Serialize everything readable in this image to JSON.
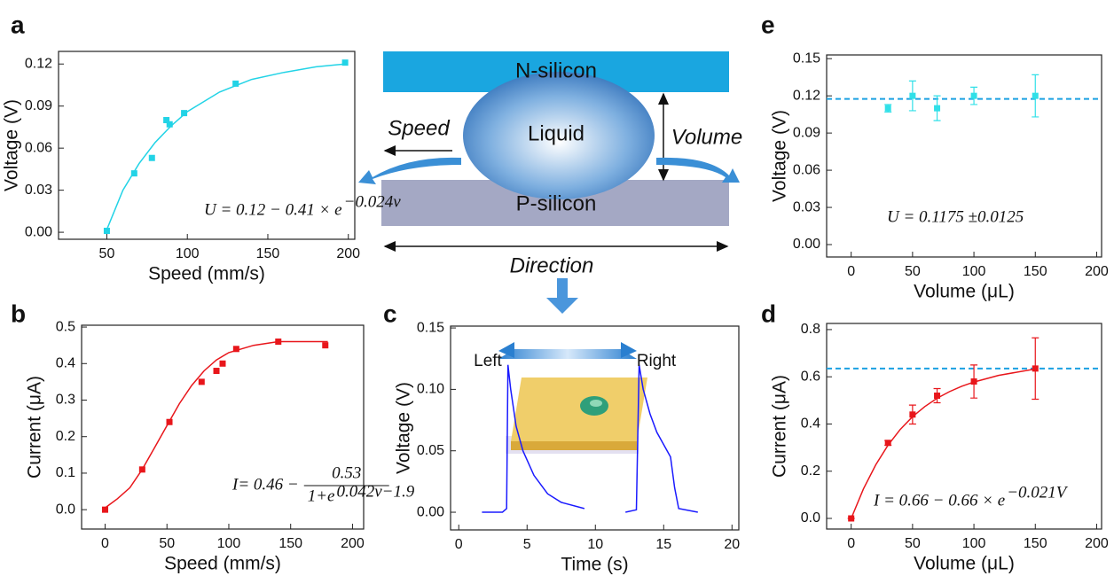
{
  "chart_data": [
    {
      "type": "scatter",
      "panel_label": "a",
      "xlabel": "Speed (mm/s)",
      "ylabel": "Voltage (V)",
      "xlim": [
        20,
        204
      ],
      "ylim": [
        -0.005,
        0.129
      ],
      "xticks": [
        50,
        100,
        150,
        200
      ],
      "yticks": [
        {
          "value": 0,
          "label": "0.00"
        },
        0.03,
        0.06,
        0.09,
        0.12
      ],
      "formula": {
        "lhs": "U = 0.12 − 0.41 × e",
        "exp": "−0.024v"
      },
      "series": [
        {
          "type": "scatter",
          "color": "#22d3e6",
          "x": [
            50,
            67,
            78,
            87,
            89,
            98,
            130,
            198
          ],
          "values": [
            0.001,
            0.042,
            0.053,
            0.08,
            0.077,
            0.085,
            0.106,
            0.121
          ]
        },
        {
          "type": "line",
          "color": "#22d3e6",
          "x": [
            50,
            60,
            70,
            80,
            90,
            100,
            120,
            140,
            160,
            180,
            198
          ],
          "values": [
            0.002,
            0.03,
            0.049,
            0.064,
            0.076,
            0.086,
            0.1,
            0.109,
            0.114,
            0.118,
            0.12
          ]
        }
      ]
    },
    {
      "type": "scatter",
      "panel_label": "b",
      "xlabel": "Speed (mm/s)",
      "ylabel": "Current (μA)",
      "xlim": [
        -19,
        209
      ],
      "ylim": [
        -0.053,
        0.505
      ],
      "xticks": [
        0,
        50,
        100,
        150,
        200
      ],
      "yticks": [
        {
          "value": 0,
          "label": "0.0"
        },
        0.1,
        0.2,
        0.3,
        0.4,
        0.5
      ],
      "formula": {
        "lhs": "I= 0.46 −",
        "numerator": "0.53",
        "denominator": "1+e",
        "exp": "0.042v−1.9"
      },
      "series": [
        {
          "type": "scatter",
          "color": "#e8161b",
          "x": [
            0,
            30,
            52,
            78,
            90,
            95,
            106,
            140,
            178
          ],
          "values": [
            0,
            0.11,
            0.24,
            0.35,
            0.38,
            0.4,
            0.44,
            0.46,
            0.45
          ]
        },
        {
          "type": "line",
          "color": "#e8161b",
          "x": [
            0,
            10,
            20,
            30,
            40,
            50,
            60,
            70,
            80,
            90,
            100,
            120,
            140,
            160,
            180
          ],
          "values": [
            0.005,
            0.03,
            0.06,
            0.11,
            0.17,
            0.23,
            0.29,
            0.34,
            0.38,
            0.41,
            0.43,
            0.45,
            0.46,
            0.46,
            0.46
          ]
        }
      ]
    },
    {
      "type": "line",
      "panel_label": "c",
      "xlabel": "Time (s)",
      "ylabel": "Voltage (V)",
      "xlim": [
        -0.6,
        20.5
      ],
      "ylim": [
        -0.0144,
        0.1515
      ],
      "xticks": [
        0,
        5,
        10,
        15,
        20
      ],
      "yticks": [
        {
          "value": 0,
          "label": "0.00"
        },
        0.05,
        {
          "value": 0.1,
          "label": "0.10"
        },
        0.15
      ],
      "annotations": [
        "Left",
        "Right"
      ],
      "series": [
        {
          "type": "line",
          "color": "#1a1aff",
          "x": [
            1.7,
            3.2,
            3.5,
            3.6,
            3.8,
            4.2,
            4.7,
            5.5,
            6.5,
            7.5,
            9.2,
            11,
            12.2,
            13.0,
            13.2,
            13.5,
            14.0,
            14.5,
            15.0,
            15.5,
            15.8,
            16.1,
            17.5
          ],
          "values": [
            0,
            0,
            0.003,
            0.12,
            0.1,
            0.07,
            0.05,
            0.03,
            0.015,
            0.008,
            0.003,
            null,
            0,
            0.002,
            0.12,
            0.1,
            0.08,
            0.065,
            0.055,
            0.045,
            0.02,
            0.003,
            0
          ]
        }
      ]
    },
    {
      "type": "errorbar",
      "panel_label": "d",
      "xlabel": "Volume (μL)",
      "ylabel": "Current (μA)",
      "xlim": [
        -20,
        204
      ],
      "ylim": [
        -0.045,
        0.826
      ],
      "xticks": [
        0,
        50,
        100,
        150,
        200
      ],
      "yticks": [
        {
          "value": 0,
          "label": "0.0"
        },
        0.2,
        0.4,
        0.6,
        0.8
      ],
      "hline": {
        "value": 0.635,
        "color": "#1ba1e2"
      },
      "formula": {
        "lhs": "I = 0.66 − 0.66 × e",
        "exp": "−0.021V"
      },
      "series": [
        {
          "type": "scatter",
          "color": "#e8161b",
          "x": [
            0,
            30,
            50,
            70,
            100,
            150
          ],
          "values": [
            0,
            0.32,
            0.44,
            0.52,
            0.58,
            0.635
          ],
          "errors": [
            0,
            0.01,
            0.04,
            0.03,
            0.07,
            0.13
          ]
        },
        {
          "type": "line",
          "color": "#e8161b",
          "x": [
            0,
            10,
            20,
            30,
            40,
            50,
            60,
            70,
            80,
            90,
            100,
            120,
            150
          ],
          "values": [
            0,
            0.125,
            0.227,
            0.31,
            0.377,
            0.431,
            0.474,
            0.509,
            0.537,
            0.56,
            0.578,
            0.606,
            0.633
          ]
        }
      ]
    },
    {
      "type": "errorbar",
      "panel_label": "e",
      "xlabel": "Volume (μL)",
      "ylabel": "Voltage (V)",
      "xlim": [
        -20,
        204
      ],
      "ylim": [
        -0.01,
        0.153
      ],
      "xticks": [
        0,
        50,
        100,
        150,
        200
      ],
      "yticks": [
        {
          "value": 0,
          "label": "0.00"
        },
        0.03,
        0.06,
        0.09,
        0.12,
        0.15
      ],
      "hline": {
        "value": 0.1175,
        "color": "#1ba1e2"
      },
      "formula": {
        "lhs": "U = 0.1175 ±0.0125"
      },
      "series": [
        {
          "type": "scatter",
          "color": "#30e0e8",
          "x": [
            30,
            50,
            70,
            100,
            150
          ],
          "values": [
            0.11,
            0.12,
            0.11,
            0.12,
            0.12
          ],
          "errors": [
            0.003,
            0.012,
            0.01,
            0.007,
            0.017
          ]
        }
      ]
    }
  ],
  "diagram": {
    "top": "N-silicon",
    "middle": "Liquid",
    "bottom": "P-silicon",
    "speed": "Speed",
    "volume": "Volume",
    "direction": "Direction"
  }
}
